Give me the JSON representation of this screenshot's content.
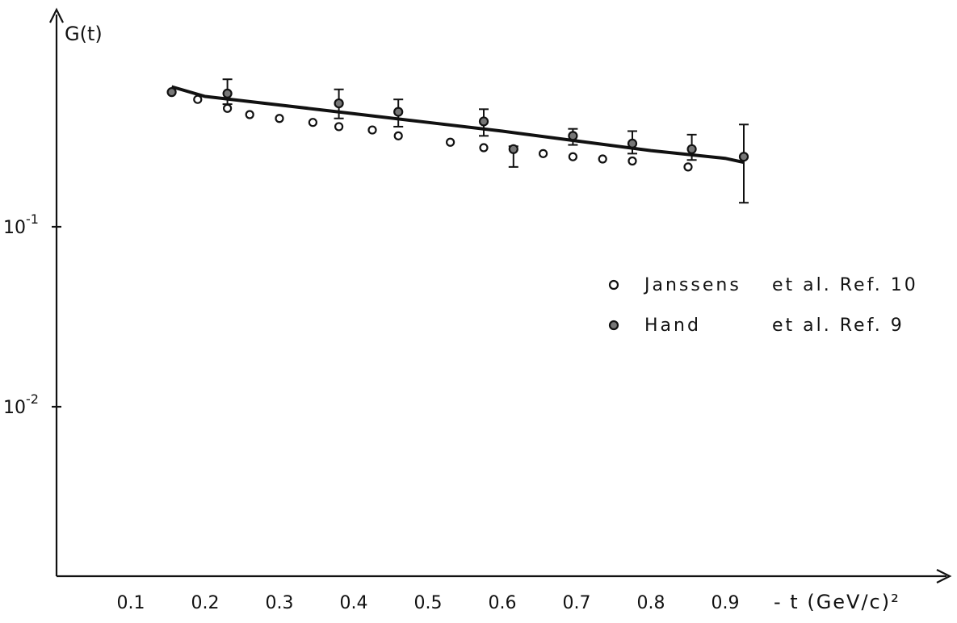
{
  "chart_data": {
    "type": "scatter",
    "ylabel": "G(t)",
    "xlabel": "- t (GeV/c)²",
    "y_scale": "log",
    "ylim": [
      0.003,
      1.1
    ],
    "xlim": [
      0,
      1.02
    ],
    "x_ticks": [
      "0.1",
      "0.2",
      "0.3",
      "0.4",
      "0.5",
      "0.6",
      "0.7",
      "0.8",
      "0.9"
    ],
    "y_ticks": [
      {
        "value": 0.1,
        "base": "10",
        "exp": "-1"
      },
      {
        "value": 0.01,
        "base": "10",
        "exp": "-2"
      }
    ],
    "grid": false,
    "legend_position": "center-right",
    "series": [
      {
        "name": "Janssens",
        "ref": "et al. Ref. 10",
        "marker": "open-circle",
        "x": [
          0.155,
          0.19,
          0.23,
          0.26,
          0.3,
          0.345,
          0.38,
          0.425,
          0.46,
          0.53,
          0.575,
          0.655,
          0.695,
          0.735,
          0.775,
          0.85
        ],
        "y": [
          0.56,
          0.51,
          0.455,
          0.42,
          0.4,
          0.38,
          0.36,
          0.345,
          0.32,
          0.295,
          0.275,
          0.255,
          0.245,
          0.238,
          0.232,
          0.215
        ]
      },
      {
        "name": "Hand",
        "ref": "et al. Ref. 9",
        "marker": "filled-circle",
        "x": [
          0.155,
          0.23,
          0.38,
          0.46,
          0.575,
          0.615,
          0.695,
          0.775,
          0.855,
          0.925
        ],
        "y": [
          0.56,
          0.55,
          0.485,
          0.435,
          0.385,
          0.27,
          0.32,
          0.29,
          0.27,
          0.245
        ],
        "err_low": [
          0.56,
          0.48,
          0.4,
          0.36,
          0.32,
          0.215,
          0.285,
          0.255,
          0.235,
          0.136
        ],
        "err_high": [
          0.56,
          0.66,
          0.58,
          0.51,
          0.45,
          0.28,
          0.35,
          0.34,
          0.325,
          0.37
        ]
      }
    ],
    "fit_curve": {
      "x": [
        0.155,
        0.2,
        0.3,
        0.4,
        0.5,
        0.6,
        0.7,
        0.8,
        0.9,
        0.925
      ],
      "y": [
        0.6,
        0.53,
        0.475,
        0.425,
        0.38,
        0.34,
        0.3,
        0.265,
        0.24,
        0.228
      ]
    }
  }
}
